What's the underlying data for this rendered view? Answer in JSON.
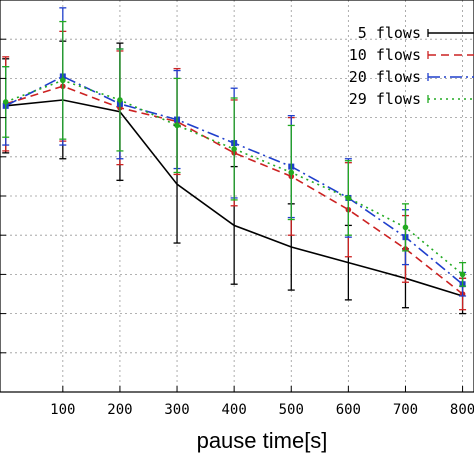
{
  "chart_data": {
    "type": "line",
    "title": "",
    "xlabel": "pause time[s]",
    "ylabel": "",
    "x": [
      0,
      100,
      200,
      300,
      400,
      500,
      600,
      700,
      800
    ],
    "xticks": [
      100,
      200,
      300,
      400,
      500,
      600,
      700,
      800
    ],
    "xtick_labels": [
      "100",
      "200",
      "300",
      "400",
      "500",
      "600",
      "700",
      "800"
    ],
    "xlim": [
      -10,
      820
    ],
    "ylim": [
      0,
      10
    ],
    "grid": true,
    "legend_position": "top-right",
    "series": [
      {
        "name": "5 flows",
        "color": "#000000",
        "dash": "",
        "marker": "none",
        "values": [
          7.3,
          7.45,
          7.15,
          5.3,
          4.25,
          3.7,
          3.3,
          2.9,
          2.45
        ],
        "errors": [
          1.2,
          1.5,
          1.75,
          1.5,
          1.5,
          1.1,
          0.95,
          0.75,
          0.45
        ]
      },
      {
        "name": "10 flows",
        "color": "#cc2222",
        "dash": "8,5",
        "marker": "circle",
        "values": [
          7.35,
          7.8,
          7.25,
          6.9,
          6.1,
          5.5,
          4.65,
          3.65,
          2.5
        ],
        "errors": [
          1.2,
          1.4,
          1.45,
          1.35,
          1.35,
          1.5,
          1.2,
          0.85,
          0.4
        ]
      },
      {
        "name": "20 flows",
        "color": "#1f3fcc",
        "dash": "12,4,2,4",
        "marker": "square",
        "values": [
          7.3,
          8.05,
          7.35,
          6.95,
          6.35,
          5.75,
          4.95,
          3.95,
          2.75
        ],
        "errors": [
          1.0,
          1.75,
          1.4,
          1.25,
          1.4,
          1.3,
          1.0,
          0.7,
          0.3
        ]
      },
      {
        "name": "29 flows",
        "color": "#22aa22",
        "dash": "2,4",
        "marker": "circle",
        "values": [
          7.4,
          7.95,
          7.45,
          6.8,
          6.2,
          5.6,
          4.95,
          4.2,
          3.0
        ],
        "errors": [
          0.9,
          1.5,
          1.3,
          1.2,
          1.3,
          1.2,
          0.95,
          0.6,
          0.3
        ]
      }
    ]
  }
}
